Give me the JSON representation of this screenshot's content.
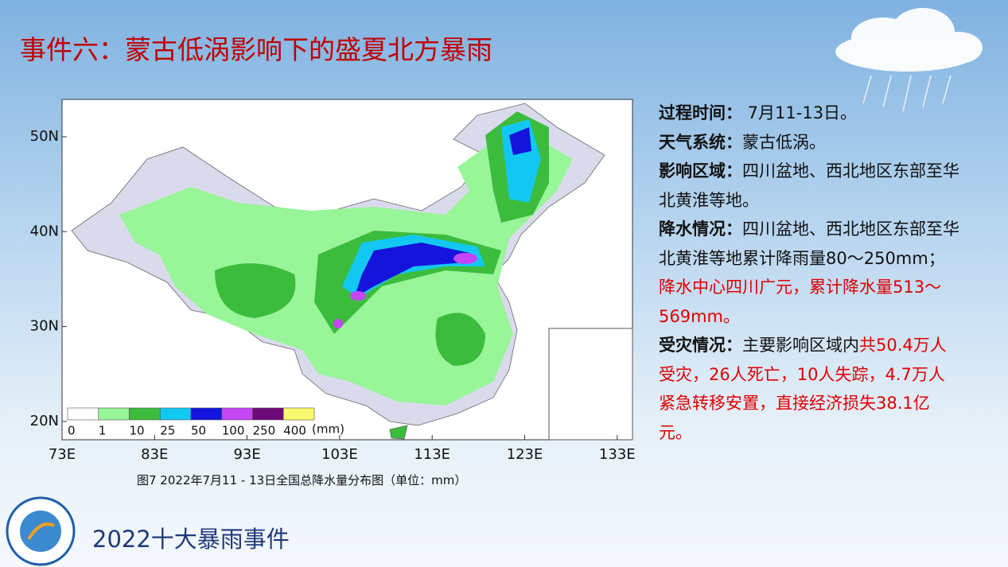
{
  "title": "事件六：蒙古低涡影响下的盛夏北方暴雨",
  "map": {
    "yticks": [
      "50N",
      "40N",
      "30N",
      "20N"
    ],
    "xticks": [
      "73E",
      "83E",
      "93E",
      "103E",
      "113E",
      "123E",
      "133E"
    ],
    "legend": {
      "labels": [
        "0",
        "1",
        "10",
        "25",
        "50",
        "100",
        "250",
        "400"
      ],
      "colors": [
        "#ffffff",
        "#98f598",
        "#3cbc3c",
        "#12c8f2",
        "#1414dc",
        "#c446f5",
        "#6e0a78",
        "#fafa6e"
      ],
      "unit": "(mm)"
    },
    "caption": "图7  2022年7月11 - 13日全国总降水量分布图（单位：mm）"
  },
  "info": [
    {
      "label": "过程时间：",
      "text": " 7月11-13日。",
      "highlight": ""
    },
    {
      "label": "天气系统：",
      "text": "蒙古低涡。",
      "highlight": ""
    },
    {
      "label": "影响区域：",
      "text": "四川盆地、西北地区东部至华北黄淮等地。",
      "highlight": ""
    },
    {
      "label": "降水情况：",
      "text": "四川盆地、西北地区东部至华北黄淮等地累计降雨量80～250mm；",
      "highlight": "降水中心四川广元，累计降水量513～569mm。"
    },
    {
      "label": "受灾情况：",
      "text": "主要影响区域内",
      "highlight": "共50.4万人受灾，26人死亡，10人失踪，4.7万人紧急转移安置，直接经济损失38.1亿元。"
    }
  ],
  "footer": "2022十大暴雨事件"
}
